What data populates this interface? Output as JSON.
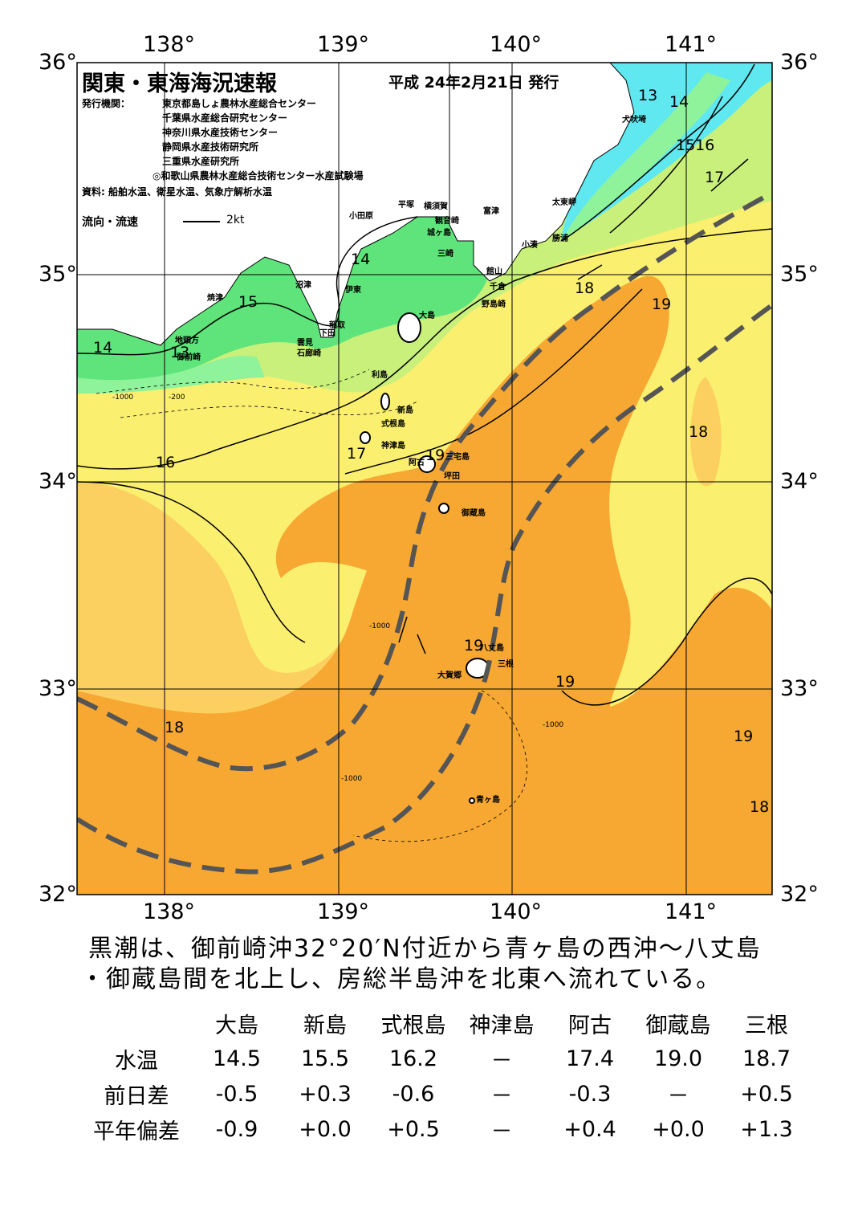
{
  "header": {
    "title": "関東・東海海況速報",
    "date": "平成 24年2月21日 発行",
    "issuer_label": "発行機関：",
    "issuers": [
      "東京都島しょ農林水産総合センター",
      "千葉県水産総合研究センター",
      "神奈川県水産技術センター",
      "静岡県水産技術研究所",
      "三重県水産研究所",
      "◎和歌山県農林水産総合技術センター水産試験場"
    ],
    "source": "資料: 船舶水温、衛星水温、気象庁解析水温",
    "legend_label": "流向・流速",
    "legend_value": "2kt"
  },
  "axes": {
    "lon_ticks": [
      "138°",
      "139°",
      "140°",
      "141°"
    ],
    "lat_ticks": [
      "36°",
      "35°",
      "34°",
      "33°",
      "32°"
    ]
  },
  "places": {
    "inubozaki": "犬吠埼",
    "taitomisaki": "太東岬",
    "katsuura": "勝浦",
    "kominato": "小湊",
    "futtsu": "富津",
    "yokosuka": "横須賀",
    "kannonzaki": "観音崎",
    "hiratsuka": "平塚",
    "odawara": "小田原",
    "jogashima": "城ヶ島",
    "misaki": "三崎",
    "tateyama": "館山",
    "chikura": "千倉",
    "nojimazaki": "野島崎",
    "numazu": "沼津",
    "ito": "伊東",
    "inatori": "稲取",
    "shimoda": "下田",
    "kumomi": "雲見",
    "irozaki": "石廊崎",
    "yaizu": "焼津",
    "jitogata": "地頭方",
    "omaezaki": "御前崎",
    "oshima": "大島",
    "toshima": "利島",
    "niijima": "新島",
    "shikinejima": "式根島",
    "kozushima": "神津島",
    "ako": "阿古",
    "miyakejima": "三宅島",
    "tsubota": "坪田",
    "mikurajima": "御蔵島",
    "hachijojima": "八丈島",
    "mitsune": "三根",
    "okago": "大賀郷",
    "aogashima": "青ヶ島"
  },
  "isotherm_labels": [
    "13",
    "14",
    "1516",
    "17",
    "18",
    "19",
    "14",
    "15",
    "14",
    "13",
    "16",
    "17",
    "19",
    "18",
    "19",
    "19",
    "18",
    "19",
    "18"
  ],
  "depth_labels": [
    "-200",
    "-1000"
  ],
  "summary": [
    "黒潮は、御前崎沖32°20′N付近から青ヶ島の西沖～八丈島",
    "・御蔵島間を北上し、房総半島沖を北東へ流れている。"
  ],
  "table": {
    "columns": [
      "大島",
      "新島",
      "式根島",
      "神津島",
      "阿古",
      "御蔵島",
      "三根"
    ],
    "rows": [
      {
        "label": "水温",
        "values": [
          "14.5",
          "15.5",
          "16.2",
          "－",
          "17.4",
          "19.0",
          "18.7"
        ]
      },
      {
        "label": "前日差",
        "values": [
          "-0.5",
          "+0.3",
          "-0.6",
          "－",
          "-0.3",
          "－",
          "+0.5"
        ]
      },
      {
        "label": "平年偏差",
        "values": [
          "-0.9",
          "+0.0",
          "+0.5",
          "－",
          "+0.4",
          "+0.0",
          "+1.3"
        ]
      }
    ]
  },
  "colors": {
    "cyan": "#5fe8f0",
    "green_light": "#8ef39a",
    "green": "#5fe37b",
    "yellow_green": "#c8f07a",
    "yellow": "#fbef6f",
    "yellow_orange": "#fbd060",
    "orange": "#f7a832",
    "kuroshio_line": "#555555",
    "land": "#ffffff"
  }
}
